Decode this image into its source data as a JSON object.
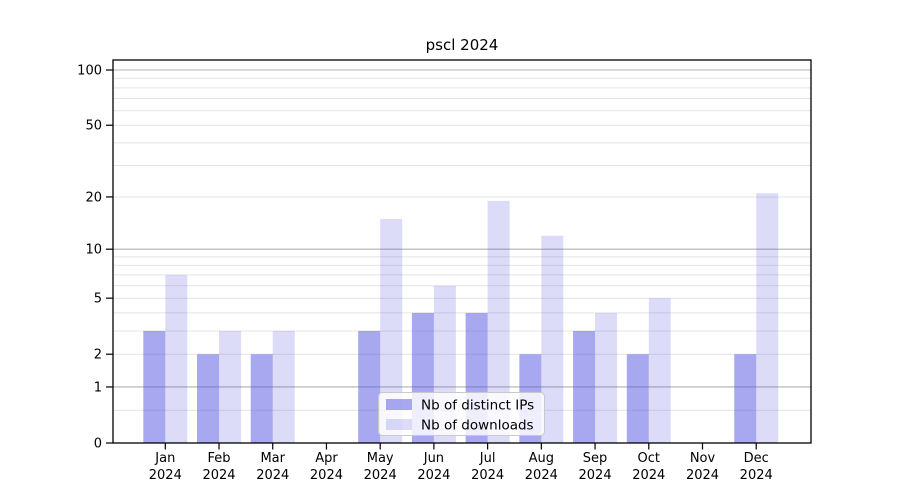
{
  "chart_data": {
    "type": "bar",
    "title": "pscl 2024",
    "categories": [
      "Jan",
      "Feb",
      "Mar",
      "Apr",
      "May",
      "Jun",
      "Jul",
      "Aug",
      "Sep",
      "Oct",
      "Nov",
      "Dec"
    ],
    "year_label": "2024",
    "series": [
      {
        "name": "Nb of distinct IPs",
        "base_color": "#5151e1",
        "opacity": 0.5,
        "blended_color": "#a8a8f0",
        "values": [
          3,
          2,
          2,
          0,
          3,
          4,
          4,
          2,
          3,
          2,
          0,
          2
        ]
      },
      {
        "name": "Nb of downloads",
        "base_color": "#5151e1",
        "opacity": 0.2,
        "blended_color": "#dcdcf9",
        "values": [
          7,
          3,
          3,
          0,
          15,
          6,
          19,
          12,
          4,
          5,
          0,
          21
        ]
      }
    ],
    "yscale": "log(1+x)",
    "ylim": [
      0,
      115
    ],
    "yticks": [
      0,
      1,
      2,
      5,
      10,
      20,
      50,
      100
    ],
    "grid": {
      "major_values": [
        1,
        10,
        100
      ],
      "minor_values": [
        0.5,
        2,
        3,
        4,
        5,
        6,
        7,
        8,
        9,
        20,
        30,
        40,
        50,
        60,
        70,
        80,
        90
      ],
      "major_color": "#b0b0b0",
      "minor_color": "#e4e4e4"
    },
    "legend": {
      "position": "lower center",
      "entries": [
        "Nb of distinct IPs",
        "Nb of downloads"
      ],
      "bg_color": "#ffffff",
      "border_color": "#c9c9c9"
    },
    "frame_color": "#000000",
    "xlabel": "",
    "ylabel": ""
  }
}
